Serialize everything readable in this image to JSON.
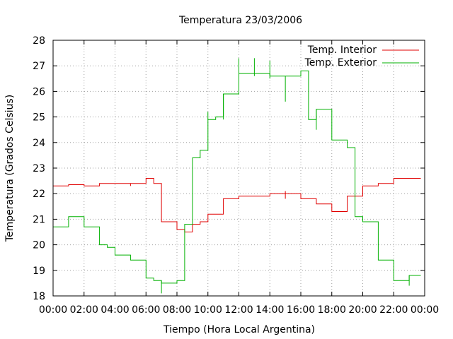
{
  "chart_data": {
    "type": "line",
    "title": "Temperatura 23/03/2006",
    "xlabel": "Tiempo (Hora Local Argentina)",
    "ylabel": "Temperatura (Grados Celsius)",
    "xlim": [
      "00:00",
      "24:00"
    ],
    "ylim": [
      18,
      28
    ],
    "grid": true,
    "legend_position": "top-right",
    "x_ticks": [
      "00:00",
      "02:00",
      "04:00",
      "06:00",
      "08:00",
      "10:00",
      "12:00",
      "14:00",
      "16:00",
      "18:00",
      "20:00",
      "22:00",
      "00:00"
    ],
    "y_ticks": [
      "18",
      "19",
      "20",
      "21",
      "22",
      "23",
      "24",
      "25",
      "26",
      "27",
      "28"
    ],
    "step_style": "hold value until next sample",
    "series": [
      {
        "name": "Temp. Interior",
        "color": "#e00000",
        "points": [
          [
            "00:00",
            22.3
          ],
          [
            "01:00",
            22.35
          ],
          [
            "02:00",
            22.3
          ],
          [
            "03:00",
            22.4
          ],
          [
            "04:00",
            22.4
          ],
          [
            "05:00",
            22.4
          ],
          [
            "06:00",
            22.6
          ],
          [
            "06:30",
            22.4
          ],
          [
            "07:00",
            20.9
          ],
          [
            "08:00",
            20.6
          ],
          [
            "08:30",
            20.5
          ],
          [
            "09:00",
            20.8
          ],
          [
            "09:30",
            20.9
          ],
          [
            "10:00",
            21.2
          ],
          [
            "11:00",
            21.8
          ],
          [
            "12:00",
            21.9
          ],
          [
            "13:00",
            21.9
          ],
          [
            "14:00",
            22.0
          ],
          [
            "15:00",
            22.0
          ],
          [
            "16:00",
            21.8
          ],
          [
            "17:00",
            21.6
          ],
          [
            "18:00",
            21.3
          ],
          [
            "19:00",
            21.9
          ],
          [
            "20:00",
            22.3
          ],
          [
            "21:00",
            22.4
          ],
          [
            "22:00",
            22.6
          ],
          [
            "23:00",
            22.6
          ]
        ],
        "spikes": [
          [
            "15:00",
            21.8,
            22.1
          ],
          [
            "05:00",
            22.3,
            22.4
          ]
        ]
      },
      {
        "name": "Temp. Exterior",
        "color": "#00b000",
        "points": [
          [
            "00:00",
            20.7
          ],
          [
            "01:00",
            21.1
          ],
          [
            "02:00",
            20.7
          ],
          [
            "03:00",
            20.0
          ],
          [
            "03:30",
            19.9
          ],
          [
            "04:00",
            19.6
          ],
          [
            "05:00",
            19.4
          ],
          [
            "06:00",
            18.7
          ],
          [
            "06:30",
            18.6
          ],
          [
            "07:00",
            18.5
          ],
          [
            "08:00",
            18.6
          ],
          [
            "08:30",
            20.8
          ],
          [
            "09:00",
            23.4
          ],
          [
            "09:30",
            23.7
          ],
          [
            "10:00",
            24.9
          ],
          [
            "10:30",
            25.0
          ],
          [
            "11:00",
            25.9
          ],
          [
            "12:00",
            26.7
          ],
          [
            "13:00",
            26.7
          ],
          [
            "14:00",
            26.6
          ],
          [
            "15:00",
            26.6
          ],
          [
            "16:00",
            26.8
          ],
          [
            "16:30",
            24.9
          ],
          [
            "17:00",
            25.3
          ],
          [
            "18:00",
            24.1
          ],
          [
            "18:30",
            24.1
          ],
          [
            "19:00",
            23.8
          ],
          [
            "19:30",
            21.1
          ],
          [
            "20:00",
            20.9
          ],
          [
            "21:00",
            19.4
          ],
          [
            "22:00",
            18.6
          ],
          [
            "23:00",
            18.8
          ]
        ],
        "spikes": [
          [
            "07:00",
            18.1,
            18.6
          ],
          [
            "10:00",
            24.9,
            25.2
          ],
          [
            "11:00",
            24.9,
            25.9
          ],
          [
            "12:00",
            26.7,
            27.3
          ],
          [
            "13:00",
            26.6,
            27.3
          ],
          [
            "14:00",
            26.5,
            27.2
          ],
          [
            "15:00",
            25.6,
            26.6
          ],
          [
            "17:00",
            24.5,
            25.3
          ],
          [
            "23:00",
            18.4,
            18.8
          ]
        ]
      }
    ]
  }
}
